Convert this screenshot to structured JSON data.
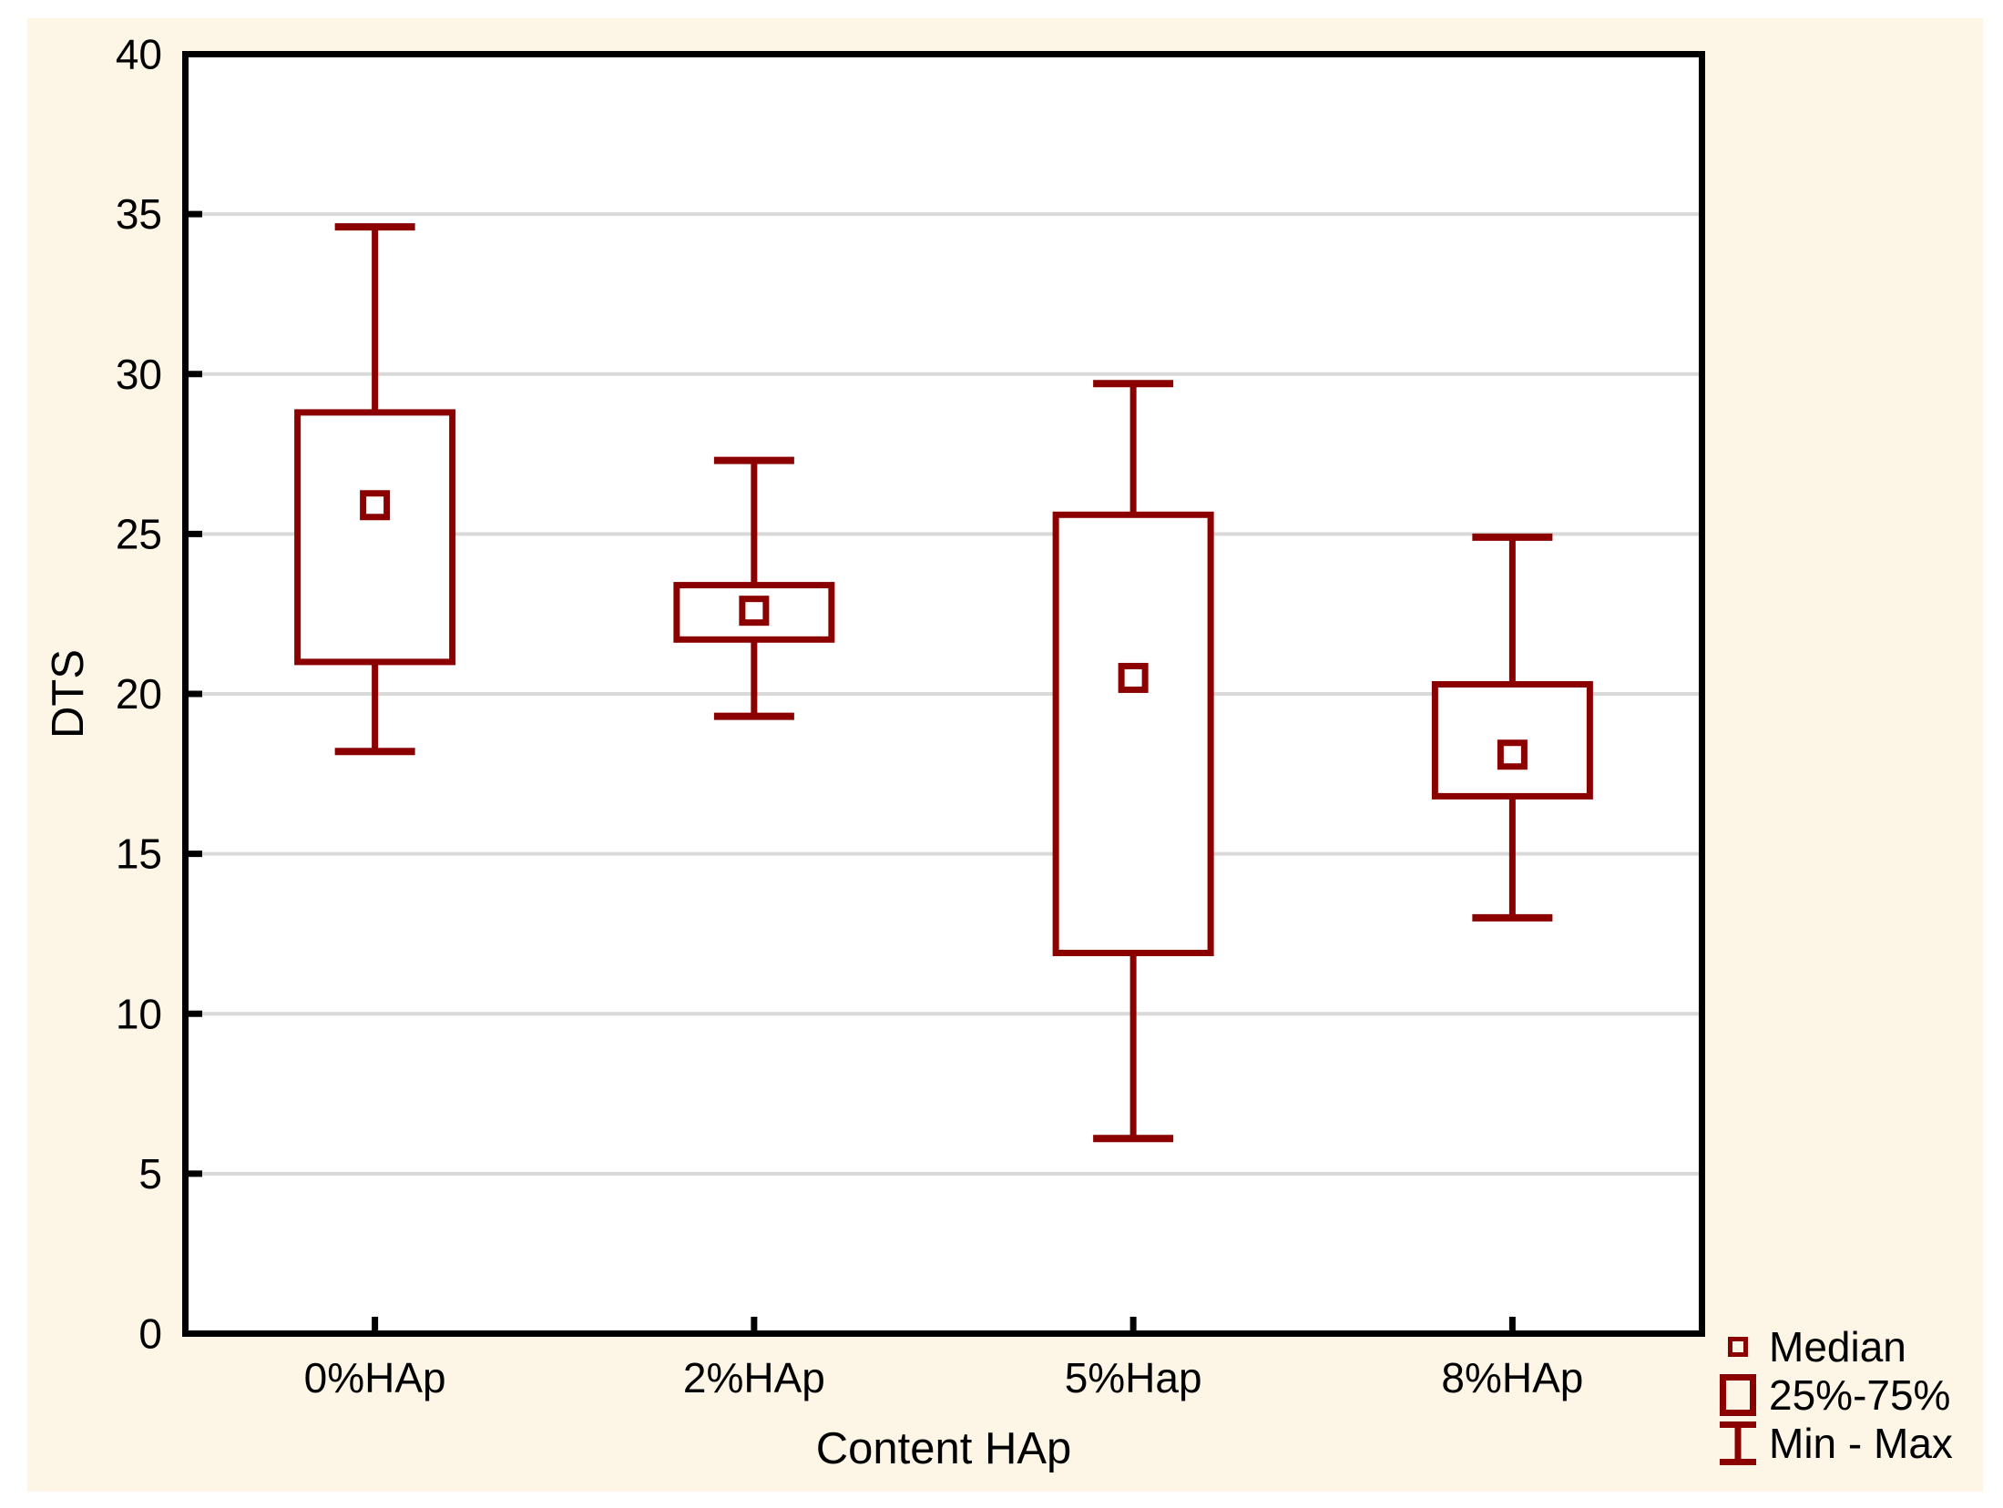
{
  "figure": {
    "xlabel": "Content HAp",
    "ylabel": "DTS"
  },
  "legend": {
    "median_label": "Median",
    "box_label": "25%-75%",
    "minmax_label": "Min - Max"
  },
  "colors": {
    "box": "#8B0000",
    "background": "#FDF5E6",
    "plot_bg": "#FFFFFF",
    "grid": "#D9D9D9",
    "axis": "#000000",
    "text": "#000000",
    "page": "#FFFFFF"
  },
  "chart_data": {
    "type": "boxplot",
    "title": "",
    "xlabel": "Content HAp",
    "ylabel": "DTS",
    "ylim": [
      0,
      40
    ],
    "yticks": [
      0,
      5,
      10,
      15,
      20,
      25,
      30,
      35,
      40
    ],
    "grid": "horizontal",
    "legend_position": "bottom-right-outside",
    "legend_entries": [
      "Median",
      "25%-75%",
      "Min - Max"
    ],
    "categories": [
      "0%HAp",
      "2%HAp",
      "5%Hap",
      "8%HAp"
    ],
    "series": [
      {
        "category": "0%HAp",
        "min": 18.2,
        "q1": 21.0,
        "median": 25.9,
        "q3": 28.8,
        "max": 34.6
      },
      {
        "category": "2%HAp",
        "min": 19.3,
        "q1": 21.7,
        "median": 22.6,
        "q3": 23.4,
        "max": 27.3
      },
      {
        "category": "5%Hap",
        "min": 6.1,
        "q1": 11.9,
        "median": 20.5,
        "q3": 25.6,
        "max": 29.7
      },
      {
        "category": "8%HAp",
        "min": 13.0,
        "q1": 16.8,
        "median": 18.1,
        "q3": 20.3,
        "max": 24.9
      }
    ]
  }
}
